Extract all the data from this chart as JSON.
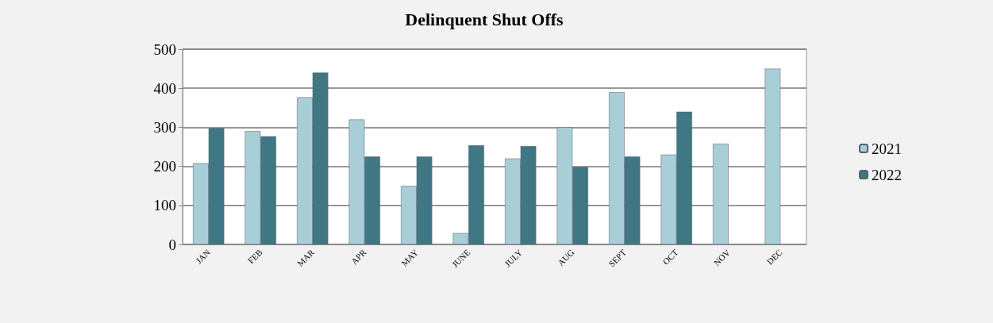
{
  "chart_data": {
    "type": "bar",
    "title": "Delinquent Shut Offs",
    "categories": [
      "JAN",
      "FEB",
      "MAR",
      "APR",
      "MAY",
      "JUNE",
      "JULY",
      "AUG",
      "SEPT",
      "OCT",
      "NOV",
      "DEC"
    ],
    "series": [
      {
        "name": "2021",
        "color": "#a8cfd8",
        "values": [
          208,
          290,
          377,
          320,
          150,
          29,
          220,
          300,
          390,
          230,
          258,
          450
        ]
      },
      {
        "name": "2022",
        "color": "#3f7785",
        "values": [
          298,
          277,
          440,
          225,
          225,
          254,
          252,
          198,
          225,
          340,
          null,
          null
        ]
      }
    ],
    "ylim": [
      0,
      500
    ],
    "yticks": [
      0,
      100,
      200,
      300,
      400,
      500
    ],
    "grid": "y",
    "legend": "right"
  }
}
